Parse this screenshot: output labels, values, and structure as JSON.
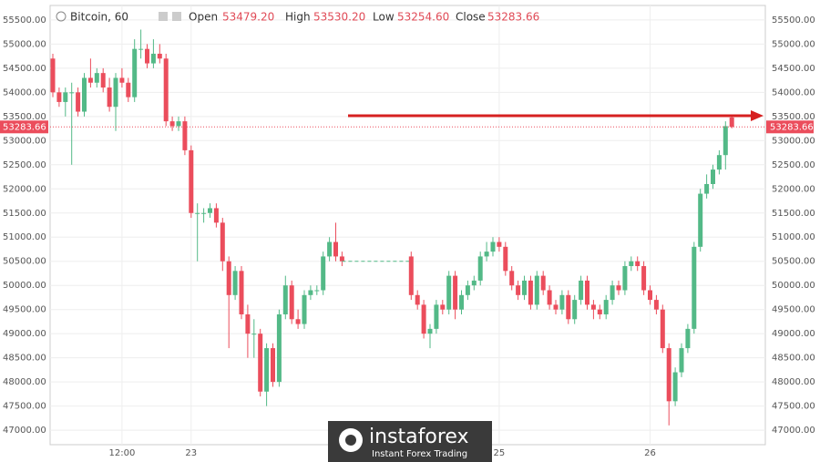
{
  "chart_data": {
    "type": "candlestick",
    "header": {
      "symbol": "Bitcoin, 60",
      "open_text": "Open",
      "open": "53479.20",
      "high_text": "High",
      "high": "53530.20",
      "low_text": "Low",
      "low": "53254.60",
      "close_text": "Close"
    },
    "up_color": "#53b987",
    "down_color": "#eb4d5c",
    "ylim": [
      46700,
      55800
    ],
    "yticks": [
      {
        "value": 47000,
        "label": "47000.00"
      },
      {
        "value": 47500,
        "label": "47500.00"
      },
      {
        "value": 48000,
        "label": "48000.00"
      },
      {
        "value": 48500,
        "label": "48500.00"
      },
      {
        "value": 49000,
        "label": "49000.00"
      },
      {
        "value": 49500,
        "label": "49500.00"
      },
      {
        "value": 50000,
        "label": "50000.00"
      },
      {
        "value": 50500,
        "label": "50500.00"
      },
      {
        "value": 51000,
        "label": "51000.00"
      },
      {
        "value": 51500,
        "label": "51500.00"
      },
      {
        "value": 52000,
        "label": "52000.00"
      },
      {
        "value": 52500,
        "label": "52500.00"
      },
      {
        "value": 53000,
        "label": "53000.00"
      },
      {
        "value": 53500,
        "label": "53500.00"
      },
      {
        "value": 54000,
        "label": "54000.00"
      },
      {
        "value": 54500,
        "label": "54500.00"
      },
      {
        "value": 55000,
        "label": "55000.00"
      },
      {
        "value": 55500,
        "label": "55500.00"
      }
    ],
    "grid": true,
    "categories": [
      null,
      null,
      null,
      null,
      null,
      null,
      null,
      null,
      null,
      null,
      null,
      "12:00",
      null,
      null,
      null,
      null,
      null,
      null,
      null,
      null,
      null,
      null,
      "23",
      null,
      null,
      null,
      null,
      null,
      null,
      null,
      null,
      null,
      null,
      null,
      null,
      null,
      null,
      null,
      null,
      null,
      null,
      null,
      null,
      null,
      null,
      null,
      null,
      null,
      null,
      null,
      null,
      null,
      null,
      null,
      null,
      null,
      null,
      null,
      null,
      null,
      null,
      null,
      null,
      null,
      null,
      null,
      null,
      null,
      null,
      null,
      null,
      "25",
      null,
      null,
      null,
      null,
      null,
      null,
      null,
      null,
      null,
      null,
      null,
      null,
      null,
      null,
      null,
      null,
      null,
      null,
      null,
      null,
      null,
      null,
      null,
      "26",
      null,
      null,
      null,
      null,
      null,
      null,
      null,
      null,
      null,
      null,
      null,
      null,
      null
    ],
    "candles": [
      [
        54700,
        54800,
        53900,
        54000
      ],
      [
        54000,
        54100,
        53700,
        53800
      ],
      [
        53800,
        54100,
        53500,
        54000
      ],
      [
        54000,
        54200,
        52500,
        54000
      ],
      [
        54000,
        54100,
        53500,
        53600
      ],
      [
        53600,
        54400,
        53500,
        54300
      ],
      [
        54300,
        54700,
        54100,
        54200
      ],
      [
        54200,
        54500,
        54100,
        54400
      ],
      [
        54400,
        54500,
        54000,
        54100
      ],
      [
        54100,
        54300,
        53600,
        53700
      ],
      [
        53700,
        54400,
        53200,
        54300
      ],
      [
        54300,
        54500,
        54100,
        54200
      ],
      [
        54200,
        54300,
        53800,
        53900
      ],
      [
        53900,
        55100,
        53800,
        54900
      ],
      [
        54900,
        55300,
        54700,
        54900
      ],
      [
        54900,
        55000,
        54500,
        54600
      ],
      [
        54600,
        55100,
        54500,
        54800
      ],
      [
        54800,
        55000,
        54600,
        54700
      ],
      [
        54700,
        54800,
        53300,
        53400
      ],
      [
        53400,
        53500,
        53200,
        53300
      ],
      [
        53300,
        53500,
        53200,
        53400
      ],
      [
        53400,
        53500,
        52700,
        52800
      ],
      [
        52800,
        52900,
        51400,
        51500
      ],
      [
        51500,
        51700,
        50500,
        51500
      ],
      [
        51500,
        51600,
        51300,
        51500
      ],
      [
        51500,
        51700,
        51400,
        51600
      ],
      [
        51600,
        51700,
        51200,
        51300
      ],
      [
        51300,
        51400,
        50300,
        50500
      ],
      [
        50500,
        50600,
        48700,
        49800
      ],
      [
        49800,
        50400,
        49700,
        50300
      ],
      [
        50300,
        50400,
        49300,
        49400
      ],
      [
        49400,
        49600,
        48500,
        49000
      ],
      [
        49000,
        49300,
        48500,
        49000
      ],
      [
        49000,
        49100,
        47700,
        47800
      ],
      [
        47800,
        48800,
        47500,
        48700
      ],
      [
        48700,
        48800,
        47900,
        48000
      ],
      [
        48000,
        49500,
        47900,
        49400
      ],
      [
        49400,
        50200,
        49300,
        50000
      ],
      [
        50000,
        50100,
        49200,
        49300
      ],
      [
        49300,
        49500,
        49100,
        49200
      ],
      [
        49200,
        49900,
        49100,
        49800
      ],
      [
        49800,
        50000,
        49700,
        49900
      ],
      [
        49900,
        50000,
        49800,
        49900
      ],
      [
        49900,
        50700,
        49800,
        50600
      ],
      [
        50600,
        51000,
        50500,
        50900
      ],
      [
        50900,
        51300,
        50500,
        50600
      ],
      [
        50600,
        50700,
        50400,
        50500
      ],
      null,
      null,
      null,
      null,
      null,
      null,
      null,
      null,
      null,
      null,
      [
        50600,
        50700,
        49700,
        49800
      ],
      [
        49800,
        49900,
        49500,
        49600
      ],
      [
        49600,
        49700,
        48900,
        49000
      ],
      [
        49000,
        49200,
        48700,
        49100
      ],
      [
        49100,
        49700,
        49000,
        49600
      ],
      [
        49600,
        49700,
        49400,
        49500
      ],
      [
        49500,
        50300,
        49400,
        50200
      ],
      [
        50200,
        50300,
        49300,
        49500
      ],
      [
        49500,
        49900,
        49400,
        49800
      ],
      [
        49800,
        50100,
        49700,
        50000
      ],
      [
        50000,
        50200,
        49900,
        50100
      ],
      [
        50100,
        50700,
        50000,
        50600
      ],
      [
        50600,
        50900,
        50500,
        50700
      ],
      [
        50700,
        51000,
        50600,
        50900
      ],
      [
        50900,
        51000,
        50700,
        50800
      ],
      [
        50800,
        50900,
        50200,
        50300
      ],
      [
        50300,
        50400,
        49900,
        50000
      ],
      [
        50000,
        50100,
        49700,
        49800
      ],
      [
        49800,
        50200,
        49700,
        50100
      ],
      [
        50100,
        50200,
        49500,
        49600
      ],
      [
        49600,
        50300,
        49500,
        50200
      ],
      [
        50200,
        50300,
        49800,
        49900
      ],
      [
        49900,
        50000,
        49500,
        49600
      ],
      [
        49600,
        49700,
        49400,
        49500
      ],
      [
        49500,
        49900,
        49400,
        49800
      ],
      [
        49800,
        49900,
        49200,
        49300
      ],
      [
        49300,
        49800,
        49200,
        49700
      ],
      [
        49700,
        50200,
        49600,
        50100
      ],
      [
        50100,
        50200,
        49500,
        49600
      ],
      [
        49600,
        49700,
        49300,
        49500
      ],
      [
        49500,
        49600,
        49300,
        49400
      ],
      [
        49400,
        49800,
        49300,
        49700
      ],
      [
        49700,
        50100,
        49600,
        50000
      ],
      [
        50000,
        50100,
        49800,
        49900
      ],
      [
        49900,
        50500,
        49800,
        50400
      ],
      [
        50400,
        50600,
        50300,
        50500
      ],
      [
        50500,
        50600,
        50300,
        50400
      ],
      [
        50400,
        50500,
        49800,
        49900
      ],
      [
        49900,
        50000,
        49600,
        49700
      ],
      [
        49700,
        49800,
        49400,
        49500
      ],
      [
        49500,
        49600,
        48600,
        48700
      ],
      [
        48700,
        48800,
        47100,
        47600
      ],
      [
        47600,
        48300,
        47500,
        48200
      ],
      [
        48200,
        48800,
        48100,
        48700
      ],
      [
        48700,
        49200,
        48600,
        49100
      ],
      [
        49100,
        50900,
        49000,
        50800
      ],
      [
        50800,
        52000,
        50700,
        51900
      ],
      [
        51900,
        52300,
        51800,
        52100
      ],
      [
        52100,
        52500,
        52000,
        52400
      ],
      [
        52400,
        52800,
        52300,
        52700
      ],
      [
        52700,
        53400,
        52400,
        53300
      ],
      [
        53479.2,
        53530.2,
        53254.6,
        53283.66
      ]
    ]
  },
  "logo": {
    "name": "instaforex",
    "tagline": "Instant Forex Trading"
  }
}
